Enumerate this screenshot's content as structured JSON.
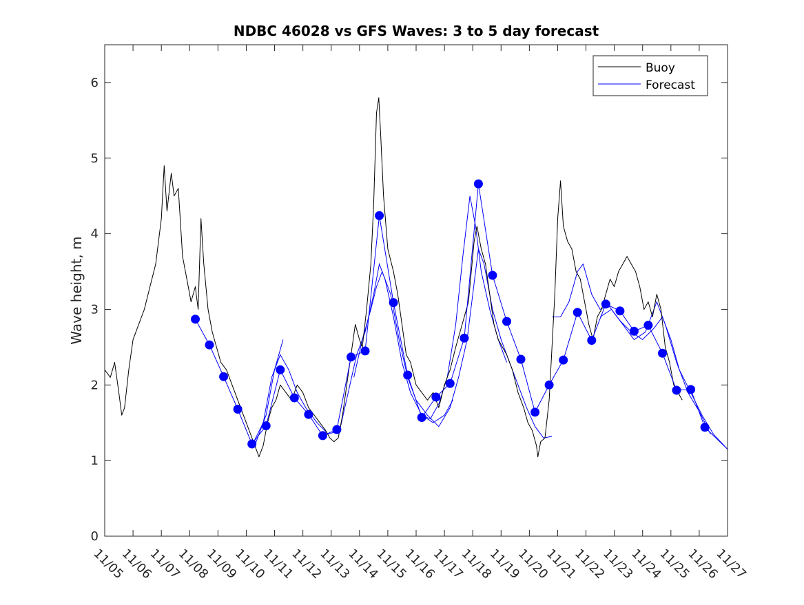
{
  "chart_data": {
    "type": "line",
    "title": "NDBC 46028 vs GFS Waves: 3 to 5 day forecast",
    "xlabel": "",
    "ylabel": "Wave height, m",
    "xlim": [
      0,
      22
    ],
    "ylim": [
      0,
      6.5
    ],
    "grid": false,
    "legend": {
      "position": "top-right",
      "entries": [
        {
          "name": "Buoy",
          "color": "#000000"
        },
        {
          "name": "Forecast",
          "color": "#0000ff"
        }
      ]
    },
    "x_tick_labels": [
      "11/05",
      "11/06",
      "11/07",
      "11/08",
      "11/09",
      "11/10",
      "11/11",
      "11/12",
      "11/13",
      "11/14",
      "11/15",
      "11/16",
      "11/17",
      "11/18",
      "11/19",
      "11/20",
      "11/21",
      "11/22",
      "11/23",
      "11/24",
      "11/25",
      "11/26",
      "11/27"
    ],
    "y_ticks": [
      0,
      1,
      2,
      3,
      4,
      5,
      6
    ],
    "x_units": "days since 11/05 00:00",
    "series": [
      {
        "name": "Buoy",
        "color": "#000000",
        "points": [
          [
            0.0,
            2.2
          ],
          [
            0.2,
            2.1
          ],
          [
            0.35,
            2.3
          ],
          [
            0.5,
            1.9
          ],
          [
            0.6,
            1.6
          ],
          [
            0.7,
            1.7
          ],
          [
            0.85,
            2.2
          ],
          [
            1.0,
            2.6
          ],
          [
            1.2,
            2.8
          ],
          [
            1.4,
            3.0
          ],
          [
            1.6,
            3.3
          ],
          [
            1.8,
            3.6
          ],
          [
            2.0,
            4.2
          ],
          [
            2.1,
            4.9
          ],
          [
            2.2,
            4.3
          ],
          [
            2.35,
            4.8
          ],
          [
            2.45,
            4.5
          ],
          [
            2.6,
            4.6
          ],
          [
            2.75,
            3.7
          ],
          [
            2.9,
            3.4
          ],
          [
            3.05,
            3.1
          ],
          [
            3.2,
            3.3
          ],
          [
            3.3,
            3.0
          ],
          [
            3.4,
            4.2
          ],
          [
            3.5,
            3.6
          ],
          [
            3.65,
            3.0
          ],
          [
            3.8,
            2.7
          ],
          [
            3.95,
            2.5
          ],
          [
            4.1,
            2.3
          ],
          [
            4.3,
            2.2
          ],
          [
            4.5,
            2.0
          ],
          [
            4.7,
            1.8
          ],
          [
            4.9,
            1.6
          ],
          [
            5.1,
            1.4
          ],
          [
            5.3,
            1.2
          ],
          [
            5.45,
            1.05
          ],
          [
            5.6,
            1.2
          ],
          [
            5.75,
            1.5
          ],
          [
            5.9,
            1.7
          ],
          [
            6.05,
            1.8
          ],
          [
            6.2,
            2.0
          ],
          [
            6.4,
            1.9
          ],
          [
            6.6,
            1.8
          ],
          [
            6.8,
            2.0
          ],
          [
            7.0,
            1.9
          ],
          [
            7.2,
            1.7
          ],
          [
            7.4,
            1.6
          ],
          [
            7.6,
            1.5
          ],
          [
            7.8,
            1.4
          ],
          [
            7.95,
            1.3
          ],
          [
            8.1,
            1.25
          ],
          [
            8.25,
            1.3
          ],
          [
            8.4,
            1.6
          ],
          [
            8.55,
            2.0
          ],
          [
            8.7,
            2.4
          ],
          [
            8.85,
            2.8
          ],
          [
            9.0,
            2.6
          ],
          [
            9.1,
            2.5
          ],
          [
            9.25,
            3.0
          ],
          [
            9.4,
            3.6
          ],
          [
            9.5,
            4.4
          ],
          [
            9.6,
            5.6
          ],
          [
            9.68,
            5.8
          ],
          [
            9.75,
            5.3
          ],
          [
            9.85,
            4.5
          ],
          [
            10.0,
            3.8
          ],
          [
            10.2,
            3.5
          ],
          [
            10.35,
            3.2
          ],
          [
            10.5,
            2.8
          ],
          [
            10.65,
            2.4
          ],
          [
            10.8,
            2.3
          ],
          [
            11.0,
            2.0
          ],
          [
            11.2,
            1.9
          ],
          [
            11.4,
            1.8
          ],
          [
            11.6,
            1.9
          ],
          [
            11.8,
            1.7
          ],
          [
            12.0,
            2.0
          ],
          [
            12.2,
            2.2
          ],
          [
            12.4,
            2.5
          ],
          [
            12.55,
            2.7
          ],
          [
            12.7,
            2.9
          ],
          [
            12.85,
            3.1
          ],
          [
            12.95,
            3.5
          ],
          [
            13.05,
            3.9
          ],
          [
            13.15,
            4.1
          ],
          [
            13.3,
            3.8
          ],
          [
            13.45,
            3.6
          ],
          [
            13.6,
            3.2
          ],
          [
            13.75,
            2.8
          ],
          [
            13.9,
            2.6
          ],
          [
            14.05,
            2.5
          ],
          [
            14.2,
            2.4
          ],
          [
            14.4,
            2.2
          ],
          [
            14.6,
            1.9
          ],
          [
            14.8,
            1.7
          ],
          [
            14.95,
            1.5
          ],
          [
            15.1,
            1.4
          ],
          [
            15.25,
            1.2
          ],
          [
            15.3,
            1.05
          ],
          [
            15.4,
            1.25
          ],
          [
            15.55,
            1.3
          ],
          [
            15.7,
            1.8
          ],
          [
            15.8,
            2.5
          ],
          [
            15.9,
            3.2
          ],
          [
            16.0,
            4.2
          ],
          [
            16.1,
            4.7
          ],
          [
            16.2,
            4.1
          ],
          [
            16.35,
            3.9
          ],
          [
            16.5,
            3.8
          ],
          [
            16.65,
            3.5
          ],
          [
            16.8,
            3.4
          ],
          [
            16.95,
            3.1
          ],
          [
            17.1,
            2.8
          ],
          [
            17.25,
            2.6
          ],
          [
            17.4,
            2.9
          ],
          [
            17.55,
            3.0
          ],
          [
            17.7,
            3.2
          ],
          [
            17.85,
            3.4
          ],
          [
            18.0,
            3.3
          ],
          [
            18.15,
            3.5
          ],
          [
            18.3,
            3.6
          ],
          [
            18.45,
            3.7
          ],
          [
            18.6,
            3.6
          ],
          [
            18.75,
            3.5
          ],
          [
            18.9,
            3.3
          ],
          [
            19.05,
            3.0
          ],
          [
            19.2,
            3.1
          ],
          [
            19.35,
            2.9
          ],
          [
            19.5,
            3.2
          ],
          [
            19.65,
            3.0
          ],
          [
            19.8,
            2.5
          ],
          [
            19.95,
            2.3
          ],
          [
            20.1,
            2.0
          ],
          [
            20.25,
            1.9
          ],
          [
            20.4,
            1.8
          ]
        ]
      },
      {
        "name": "Forecast",
        "color": "#0000ff",
        "points": [
          [
            3.2,
            2.87
          ],
          [
            3.7,
            2.53
          ],
          [
            4.2,
            2.11
          ],
          [
            4.7,
            1.68
          ],
          [
            5.2,
            1.22
          ],
          [
            5.7,
            1.46
          ],
          [
            6.2,
            2.2
          ],
          [
            6.7,
            1.83
          ],
          [
            7.2,
            1.61
          ],
          [
            7.7,
            1.33
          ],
          [
            8.2,
            1.41
          ],
          [
            8.7,
            2.37
          ],
          [
            9.2,
            2.45
          ],
          [
            9.7,
            4.24
          ],
          [
            10.2,
            3.09
          ],
          [
            10.7,
            2.13
          ],
          [
            11.2,
            1.57
          ],
          [
            11.7,
            1.84
          ],
          [
            12.2,
            2.02
          ],
          [
            12.7,
            2.62
          ],
          [
            13.2,
            4.66
          ],
          [
            13.7,
            3.45
          ],
          [
            14.2,
            2.84
          ],
          [
            14.7,
            2.34
          ],
          [
            15.2,
            1.64
          ],
          [
            15.7,
            2.0
          ],
          [
            16.2,
            2.33
          ],
          [
            16.7,
            2.96
          ],
          [
            17.2,
            2.59
          ],
          [
            17.7,
            3.07
          ],
          [
            18.2,
            2.98
          ],
          [
            18.7,
            2.71
          ],
          [
            19.2,
            2.79
          ],
          [
            19.7,
            2.42
          ],
          [
            20.2,
            1.93
          ],
          [
            20.7,
            1.94
          ],
          [
            21.2,
            1.44
          ],
          [
            22.0,
            1.15
          ]
        ]
      }
    ],
    "forecast_runs": [
      [
        [
          5.2,
          1.2
        ],
        [
          5.6,
          1.5
        ],
        [
          5.9,
          2.1
        ],
        [
          6.2,
          2.4
        ],
        [
          6.5,
          2.2
        ],
        [
          6.8,
          1.9
        ],
        [
          7.1,
          1.7
        ],
        [
          7.5,
          1.5
        ],
        [
          7.9,
          1.35
        ],
        [
          8.3,
          1.4
        ],
        [
          8.6,
          1.9
        ],
        [
          8.9,
          2.4
        ],
        [
          9.2,
          2.7
        ],
        [
          9.5,
          3.2
        ],
        [
          9.7,
          3.6
        ],
        [
          9.9,
          3.4
        ],
        [
          10.2,
          2.9
        ],
        [
          10.5,
          2.3
        ],
        [
          10.8,
          1.9
        ],
        [
          11.2,
          1.6
        ],
        [
          11.6,
          1.5
        ],
        [
          12.0,
          1.6
        ],
        [
          12.3,
          1.8
        ]
      ],
      [
        [
          5.3,
          1.2
        ],
        [
          5.7,
          1.6
        ],
        [
          6.0,
          2.2
        ],
        [
          6.3,
          2.6
        ]
      ],
      [
        [
          8.8,
          2.1
        ],
        [
          9.1,
          2.6
        ],
        [
          9.4,
          3.0
        ],
        [
          9.6,
          3.3
        ],
        [
          9.8,
          3.5
        ],
        [
          10.1,
          3.2
        ],
        [
          10.4,
          2.6
        ],
        [
          10.7,
          2.1
        ],
        [
          11.0,
          1.8
        ],
        [
          11.4,
          1.6
        ],
        [
          11.8,
          1.45
        ],
        [
          12.2,
          1.7
        ],
        [
          12.5,
          2.1
        ],
        [
          12.8,
          2.6
        ],
        [
          13.0,
          3.2
        ],
        [
          13.2,
          3.8
        ],
        [
          13.4,
          3.6
        ],
        [
          13.7,
          3.0
        ],
        [
          14.0,
          2.6
        ],
        [
          14.3,
          2.3
        ],
        [
          14.6,
          2.0
        ],
        [
          14.9,
          1.7
        ],
        [
          15.2,
          1.45
        ],
        [
          15.5,
          1.3
        ],
        [
          15.8,
          1.32
        ]
      ],
      [
        [
          11.2,
          1.6
        ],
        [
          11.5,
          1.55
        ],
        [
          11.8,
          1.75
        ],
        [
          12.1,
          2.1
        ],
        [
          12.4,
          2.8
        ],
        [
          12.65,
          3.7
        ],
        [
          12.9,
          4.5
        ],
        [
          13.1,
          4.1
        ],
        [
          13.3,
          3.5
        ],
        [
          13.6,
          3.0
        ],
        [
          13.9,
          2.6
        ],
        [
          14.2,
          2.3
        ]
      ],
      [
        [
          15.8,
          2.9
        ],
        [
          16.1,
          2.9
        ],
        [
          16.4,
          3.1
        ],
        [
          16.7,
          3.5
        ],
        [
          16.9,
          3.6
        ],
        [
          17.2,
          3.2
        ],
        [
          17.5,
          3.0
        ],
        [
          17.8,
          3.05
        ],
        [
          18.2,
          2.85
        ],
        [
          18.6,
          2.7
        ],
        [
          19.0,
          2.6
        ],
        [
          19.4,
          2.75
        ],
        [
          19.7,
          2.9
        ],
        [
          20.0,
          2.6
        ],
        [
          20.3,
          2.2
        ],
        [
          20.7,
          1.9
        ],
        [
          21.1,
          1.6
        ],
        [
          21.5,
          1.35
        ],
        [
          22.0,
          1.15
        ]
      ],
      [
        [
          17.5,
          2.9
        ],
        [
          17.9,
          3.0
        ],
        [
          18.3,
          2.8
        ],
        [
          18.7,
          2.6
        ],
        [
          19.1,
          2.7
        ],
        [
          19.5,
          3.1
        ],
        [
          19.8,
          2.8
        ],
        [
          20.2,
          2.3
        ],
        [
          20.6,
          1.9
        ],
        [
          21.0,
          1.65
        ],
        [
          21.4,
          1.35
        ]
      ]
    ]
  }
}
